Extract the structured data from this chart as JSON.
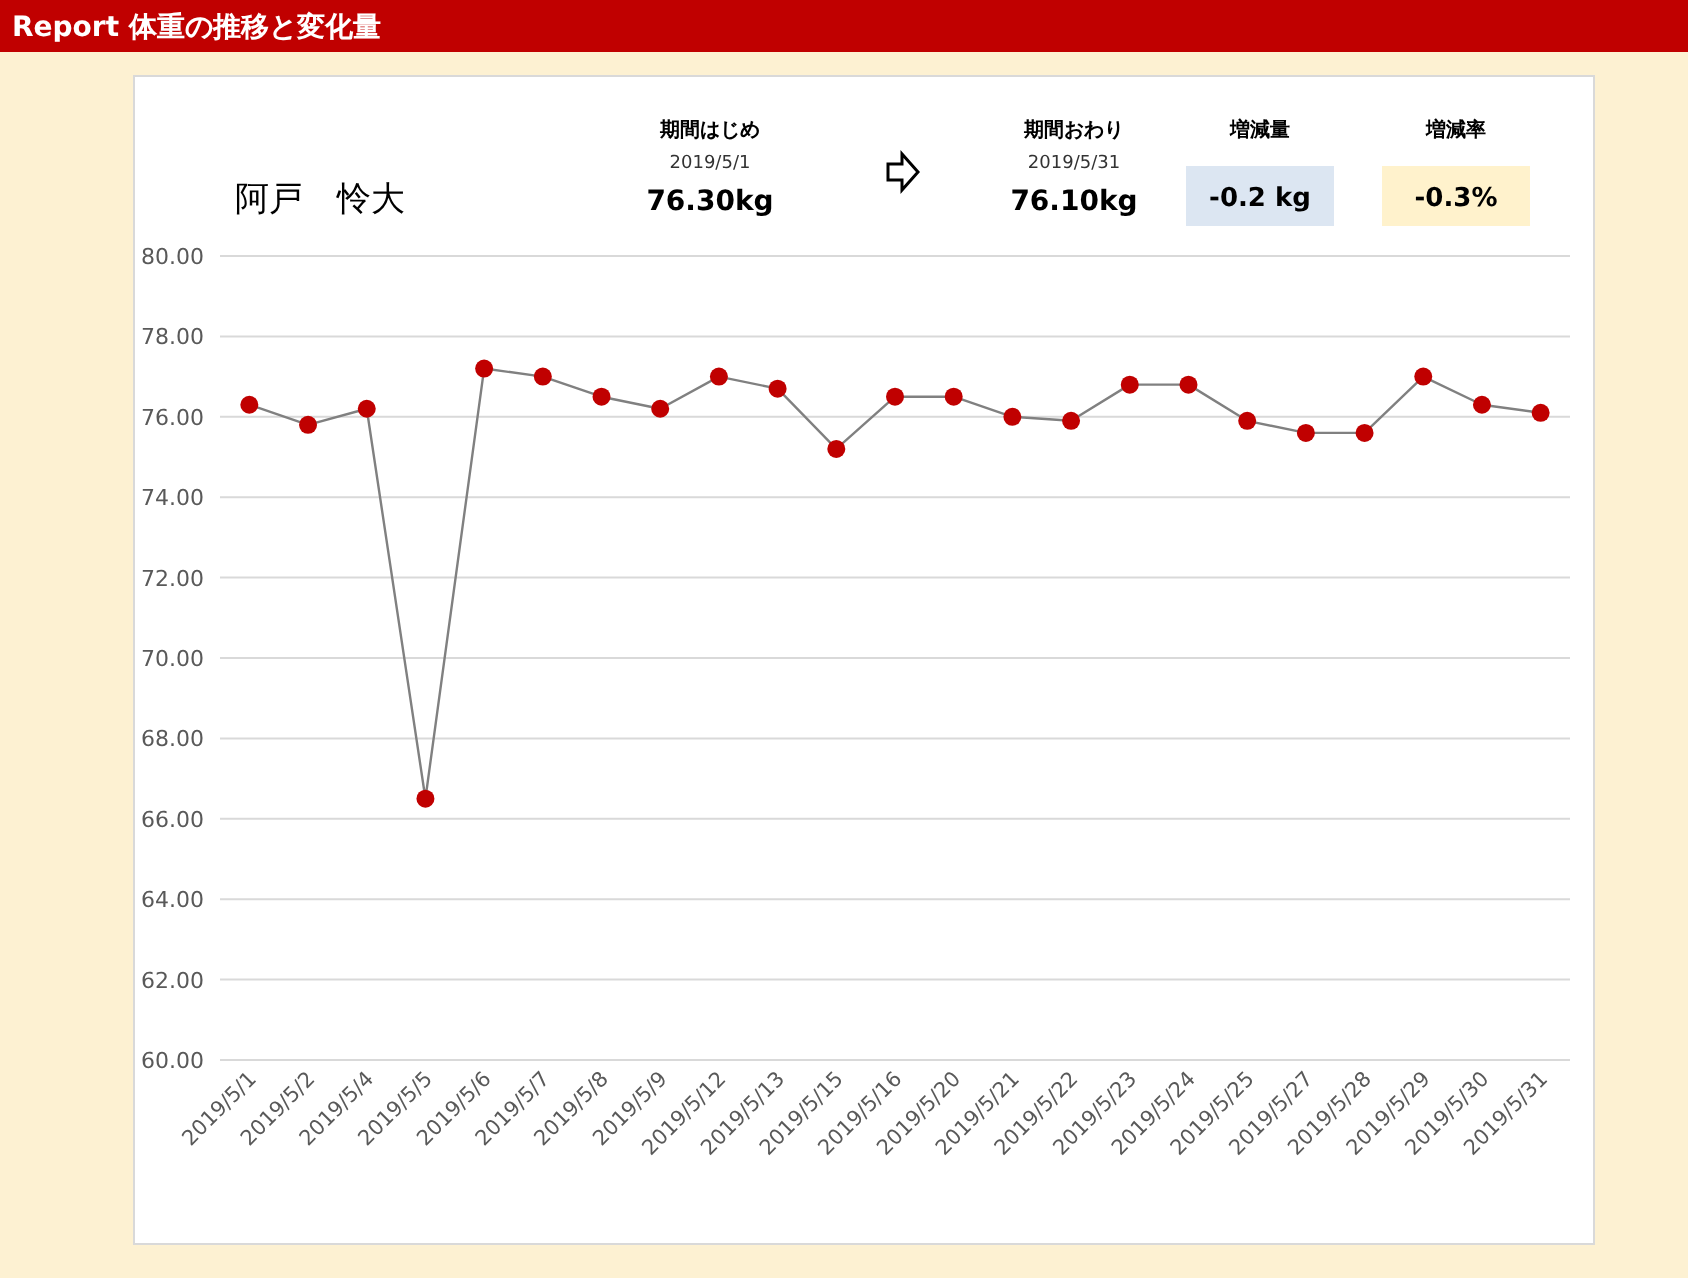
{
  "chart_data": {
    "type": "line",
    "title": "Report  体重の推移と変化量",
    "annotations": [
      "阿戸　怜大",
      "期間はじめ",
      "2019/5/1",
      "76.30kg",
      "期間おわり",
      "2019/5/31",
      "76.10kg",
      "増減量",
      "-0.2 kg",
      "増減率",
      "-0.3%"
    ],
    "categories": [
      "2019/5/1",
      "2019/5/2",
      "2019/5/4",
      "2019/5/5",
      "2019/5/6",
      "2019/5/7",
      "2019/5/8",
      "2019/5/9",
      "2019/5/12",
      "2019/5/13",
      "2019/5/15",
      "2019/5/16",
      "2019/5/20",
      "2019/5/21",
      "2019/5/22",
      "2019/5/23",
      "2019/5/24",
      "2019/5/25",
      "2019/5/27",
      "2019/5/28",
      "2019/5/29",
      "2019/5/30",
      "2019/5/31"
    ],
    "series": [
      {
        "color": "#c00000",
        "values": [
          76.3,
          75.8,
          76.2,
          66.5,
          77.2,
          77.0,
          76.5,
          76.2,
          77.0,
          76.7,
          75.2,
          76.5,
          76.5,
          76.0,
          75.9,
          76.8,
          76.8,
          75.9,
          75.6,
          75.6,
          77.0,
          76.3,
          76.1
        ]
      }
    ],
    "ylim": [
      60,
      80
    ],
    "yticks": [
      {
        "value": 60,
        "label": "60.00"
      },
      {
        "value": 62,
        "label": "62.00"
      },
      {
        "value": 64,
        "label": "64.00"
      },
      {
        "value": 66,
        "label": "66.00"
      },
      {
        "value": 68,
        "label": "68.00"
      },
      {
        "value": 70,
        "label": "70.00"
      },
      {
        "value": 72,
        "label": "72.00"
      },
      {
        "value": 74,
        "label": "74.00"
      },
      {
        "value": 76,
        "label": "76.00"
      },
      {
        "value": 78,
        "label": "78.00"
      },
      {
        "value": 80,
        "label": "80.00"
      }
    ],
    "grid": "y",
    "marker": "circle",
    "line_style": "solid"
  }
}
